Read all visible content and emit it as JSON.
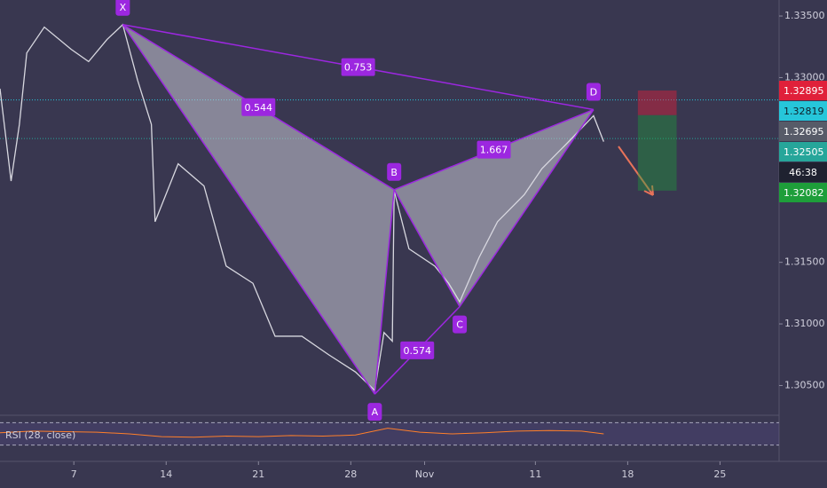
{
  "chart_data": {
    "type": "line",
    "x": [
      -0.8,
      -0.68,
      -0.59,
      -0.51,
      -0.32,
      -0.03,
      0.16,
      0.36,
      0.53,
      0.69,
      0.84,
      0.88,
      1.13,
      1.41,
      1.65,
      1.94,
      2.18,
      2.47,
      2.76,
      3.05,
      3.26,
      3.36,
      3.45,
      3.47,
      3.63,
      3.91,
      4.06,
      4.18,
      4.39,
      4.59,
      4.88,
      5.07,
      5.36,
      5.63,
      5.74
    ],
    "series": [
      {
        "color": "#d8d8e0",
        "values": [
          1.3291,
          1.3216,
          1.3262,
          1.332,
          1.3341,
          1.3323,
          1.3313,
          1.3331,
          1.3343,
          1.3298,
          1.3262,
          1.3183,
          1.323,
          1.3212,
          1.3147,
          1.3133,
          1.309,
          1.309,
          1.3075,
          1.3061,
          1.3046,
          1.3093,
          1.3086,
          1.3208,
          1.3161,
          1.3147,
          1.3133,
          1.3118,
          1.3154,
          1.3183,
          1.3205,
          1.3226,
          1.3248,
          1.3269,
          1.3248
        ]
      }
    ],
    "xlim": [
      -0.8,
      7.64
    ],
    "xticks": [
      {
        "value": 0,
        "label": "7"
      },
      {
        "value": 1,
        "label": "14"
      },
      {
        "value": 2,
        "label": "21"
      },
      {
        "value": 3,
        "label": "28"
      },
      {
        "value": 3.8,
        "label": "Nov"
      },
      {
        "value": 5,
        "label": "11"
      },
      {
        "value": 6,
        "label": "18"
      },
      {
        "value": 7,
        "label": "25"
      }
    ],
    "ylim": [
      1.3028,
      1.3363
    ],
    "yticks": [
      {
        "value": 1.305,
        "label": "1.30500"
      },
      {
        "value": 1.31,
        "label": "1.31000"
      },
      {
        "value": 1.315,
        "label": "1.31500"
      },
      {
        "value": 1.33,
        "label": "1.33000"
      },
      {
        "value": 1.335,
        "label": "1.33500"
      }
    ],
    "pattern": {
      "color": "#9c27e0",
      "fill": "#c9c8d4",
      "points": [
        {
          "label": "X",
          "x": 0.53,
          "y": 1.3343
        },
        {
          "label": "A",
          "x": 3.26,
          "y": 1.3043
        },
        {
          "label": "B",
          "x": 3.47,
          "y": 1.3209
        },
        {
          "label": "C",
          "x": 4.18,
          "y": 1.3114
        },
        {
          "label": "D",
          "x": 5.63,
          "y": 1.3274
        }
      ],
      "ratios": [
        {
          "label": "0.544",
          "from": 0,
          "to": 2
        },
        {
          "label": "0.753",
          "from": 0,
          "to": 4
        },
        {
          "label": "1.667",
          "from": 2,
          "to": 4
        },
        {
          "label": "0.574",
          "from": 1,
          "to": 3
        }
      ]
    },
    "position": {
      "x": [
        6.11,
        6.53
      ],
      "entry": 1.32695,
      "stop": 1.32895,
      "target": 1.32082
    },
    "level_lines": [
      {
        "value": 1.32819,
        "color": "#26c6da"
      },
      {
        "value": 1.32505,
        "color": "#26a69a"
      }
    ],
    "axis_badges": [
      {
        "value": 1.32895,
        "color": "#e0203a"
      },
      {
        "value": 1.32819,
        "color": "#26c6da"
      },
      {
        "value": 1.32695,
        "color": "#575b68"
      },
      {
        "value": 1.32505,
        "color": "#26a69a"
      },
      {
        "text": "46:38",
        "color": "#1f2230"
      },
      {
        "value": 1.32082,
        "color": "#1e9e3a"
      }
    ],
    "rsi": {
      "label": "RSI (28, close)",
      "color": "#ff7f2a",
      "ylim": [
        20,
        80
      ],
      "bands": [
        30,
        70
      ],
      "x": [
        -0.8,
        -0.45,
        -0.1,
        0.25,
        0.6,
        0.95,
        1.3,
        1.65,
        2.0,
        2.35,
        2.7,
        3.05,
        3.4,
        3.75,
        4.1,
        4.45,
        4.8,
        5.15,
        5.5,
        5.74
      ],
      "values": [
        52,
        55,
        54,
        53,
        50,
        45,
        44,
        46,
        45,
        47,
        46,
        48,
        60,
        53,
        50,
        52,
        55,
        56,
        55,
        50
      ]
    }
  }
}
